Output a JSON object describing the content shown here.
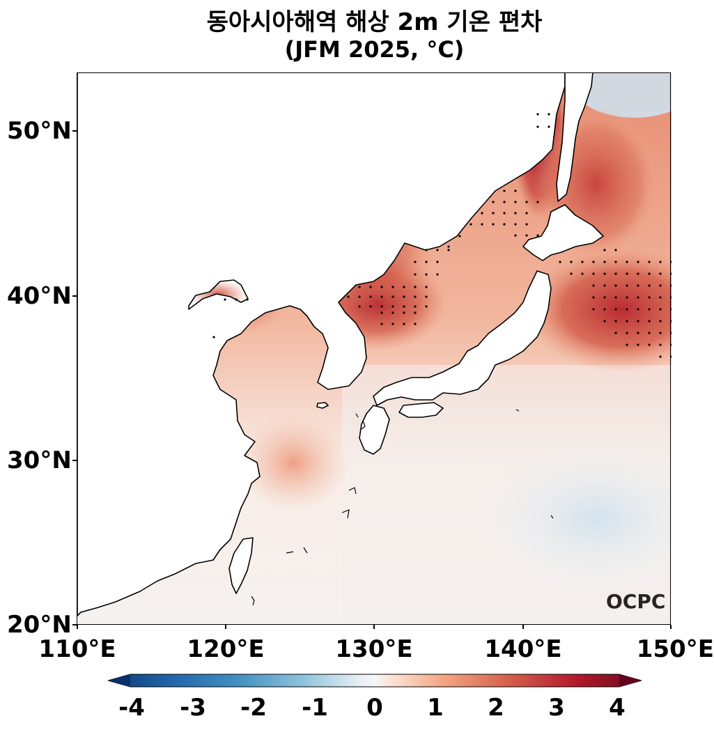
{
  "title_line1": "동아시아해역 해상 2m 기온 편차",
  "title_line2": "(JFM 2025, °C)",
  "lat_ticks": [
    "50°N",
    "40°N",
    "30°N",
    "20°N"
  ],
  "lon_ticks": [
    "110°E",
    "120°E",
    "130°E",
    "140°E",
    "150°E"
  ],
  "colorbar_ticks": [
    "-4",
    "-3",
    "-2",
    "-1",
    "0",
    "1",
    "2",
    "3",
    "4"
  ],
  "colorbar_range": [
    -4,
    4
  ],
  "logo": "OCPC",
  "colors": {
    "strong_warm": "#a81d2a",
    "moderate_warm": "#d4604d",
    "weak_warm": "#f2b39a",
    "neutral": "#f7f3f0",
    "weak_cool": "#d8e6ef",
    "strong_cool": "#08306b"
  }
}
